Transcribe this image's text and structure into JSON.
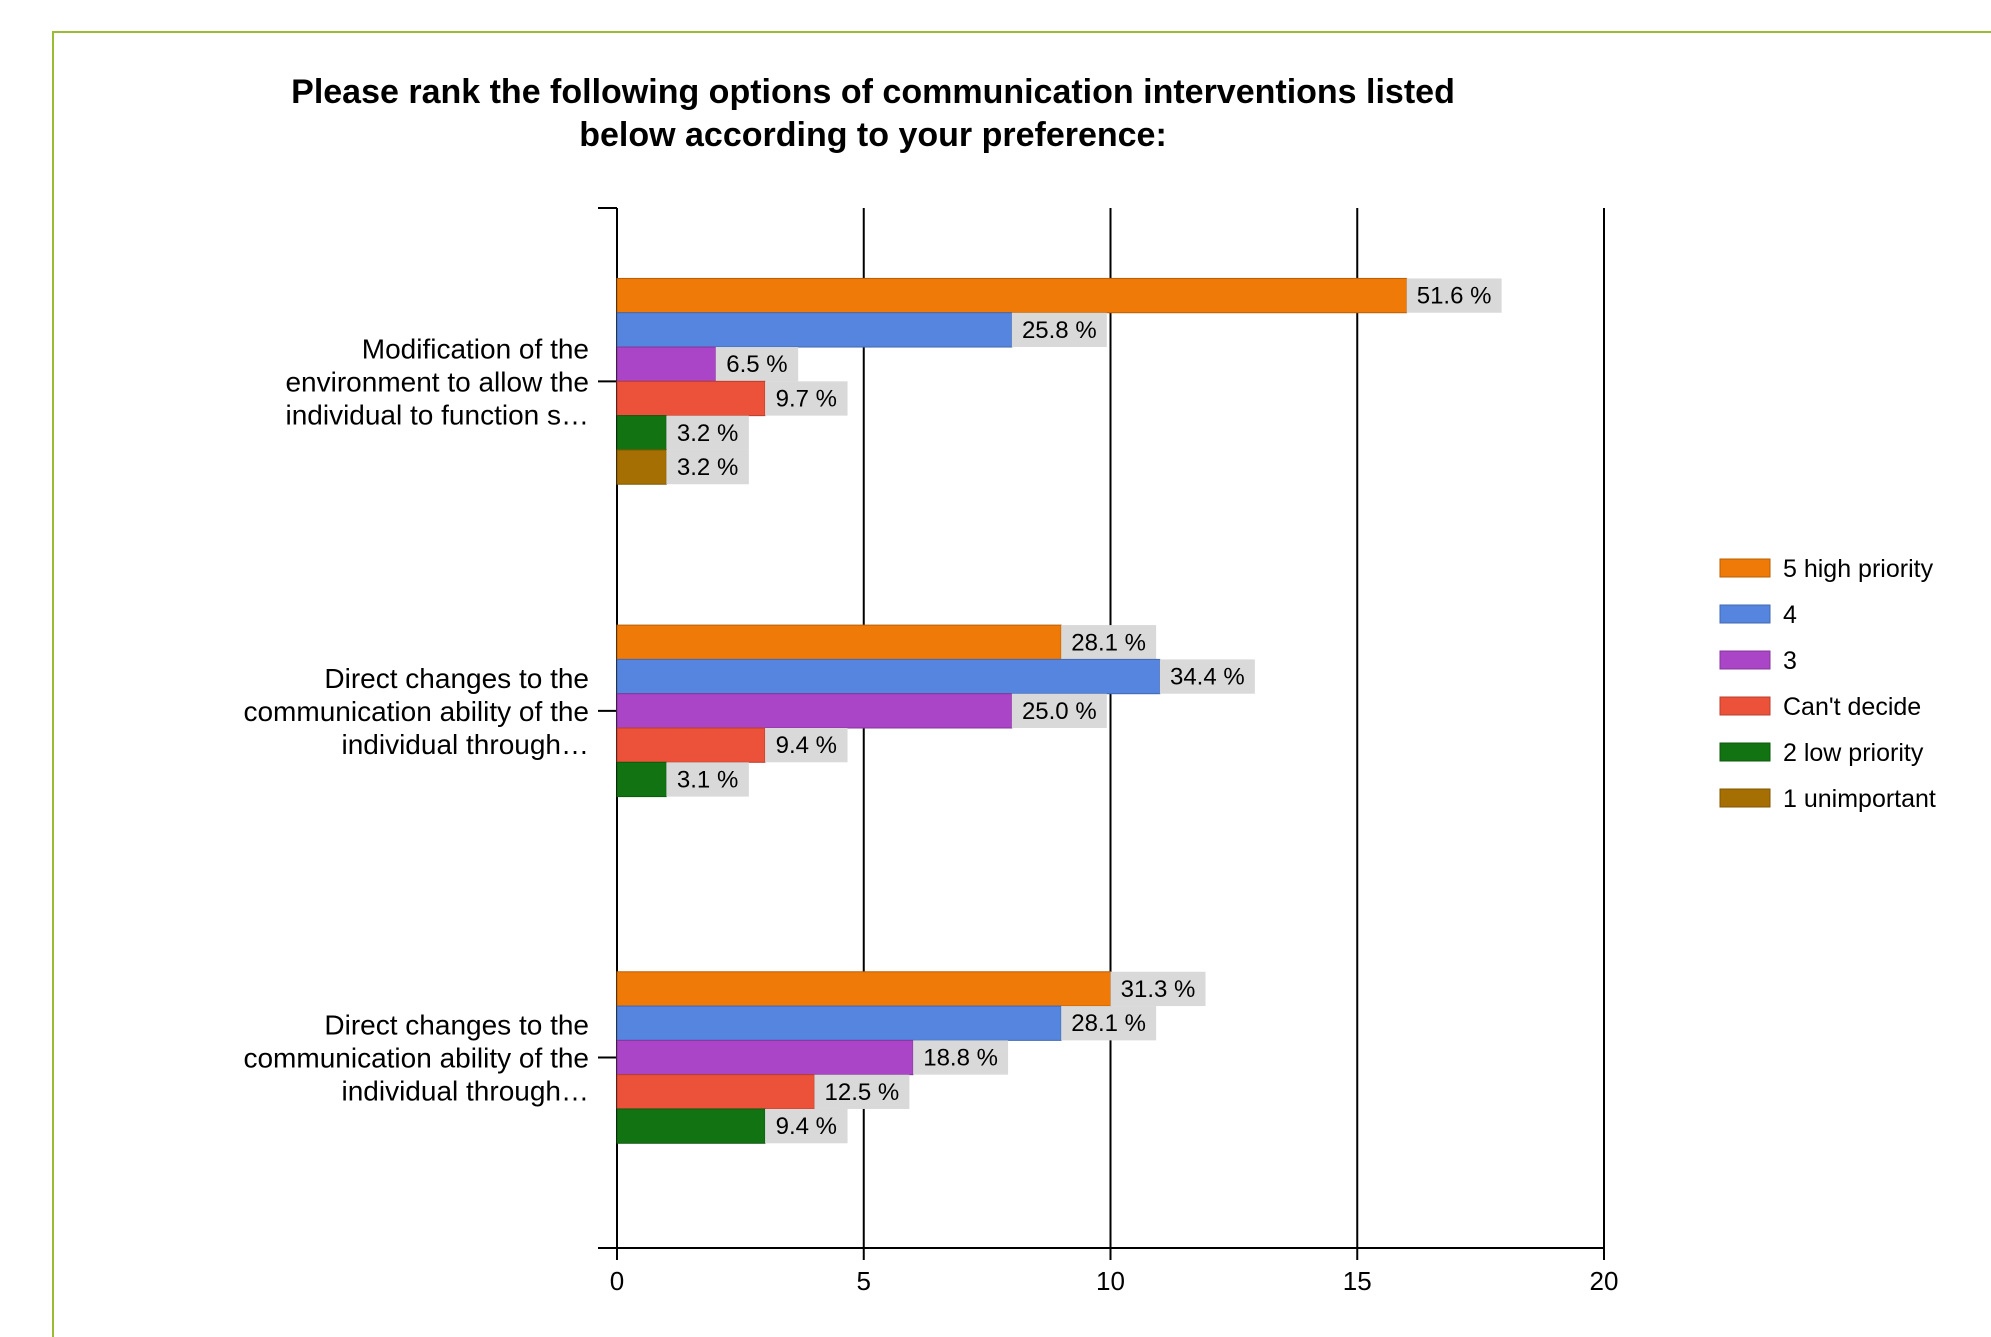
{
  "chart_data": {
    "type": "bar",
    "orientation": "horizontal",
    "title": "Please rank the following options of communication interventions listed below according to your preference:",
    "title_lines": [
      "Please rank the following options of communication interventions listed",
      "below according to your preference:"
    ],
    "categories": [
      [
        "Modification of the",
        "environment to allow the",
        "individual to function s…"
      ],
      [
        "Direct changes to the",
        "communication ability of the",
        "individual through…"
      ],
      [
        "Direct changes to the",
        "communication ability of the",
        "individual through…"
      ]
    ],
    "xlim": [
      0,
      20
    ],
    "xticks": [
      "0",
      "5",
      "10",
      "15",
      "20"
    ],
    "grid": true,
    "legend_position": "right",
    "series": [
      {
        "name": "5 high priority",
        "color": "#ef7a07",
        "values": [
          16,
          9,
          10
        ],
        "labels": [
          "51.6 %",
          "28.1 %",
          "31.3 %"
        ]
      },
      {
        "name": "4",
        "color": "#5585df",
        "values": [
          8,
          11,
          9
        ],
        "labels": [
          "25.8 %",
          "34.4 %",
          "28.1 %"
        ]
      },
      {
        "name": "3",
        "color": "#a945c6",
        "values": [
          2,
          8,
          6
        ],
        "labels": [
          "6.5 %",
          "25.0 %",
          "18.8 %"
        ]
      },
      {
        "name": "Can't decide",
        "color": "#ec5139",
        "values": [
          3,
          3,
          4
        ],
        "labels": [
          "9.7 %",
          "9.4 %",
          "12.5 %"
        ]
      },
      {
        "name": "2 low priority",
        "color": "#127312",
        "values": [
          1,
          1,
          3
        ],
        "labels": [
          "3.2 %",
          "3.1 %",
          "9.4 %"
        ]
      },
      {
        "name": "1 unimportant",
        "color": "#a56f03",
        "values": [
          1,
          null,
          null
        ],
        "labels": [
          "3.2 %",
          null,
          null
        ]
      }
    ]
  }
}
